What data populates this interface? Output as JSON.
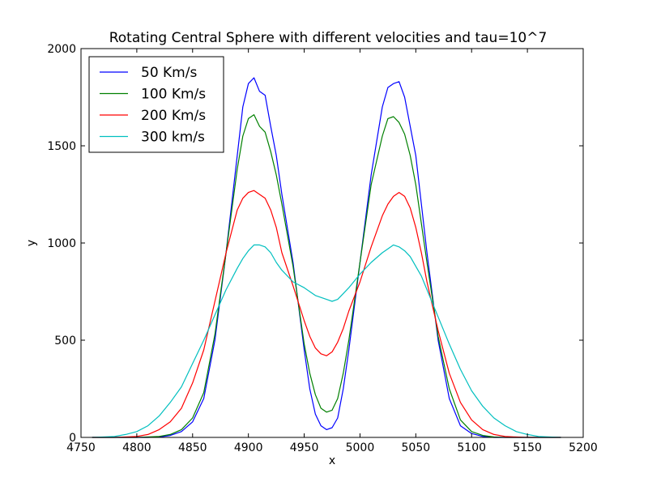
{
  "chart_data": {
    "type": "line",
    "title": "Rotating Central Sphere with different velocities and tau=10^7",
    "xlabel": "x",
    "ylabel": "y",
    "xlim": [
      4750,
      5200
    ],
    "ylim": [
      0,
      2000
    ],
    "xticks": [
      4750,
      4800,
      4850,
      4900,
      4950,
      5000,
      5050,
      5100,
      5150,
      5200
    ],
    "yticks": [
      0,
      500,
      1000,
      1500,
      2000
    ],
    "legend_position": "upper-left",
    "grid": false,
    "x": [
      4760,
      4770,
      4780,
      4790,
      4800,
      4810,
      4820,
      4830,
      4840,
      4850,
      4860,
      4870,
      4880,
      4890,
      4895,
      4900,
      4905,
      4910,
      4915,
      4920,
      4925,
      4930,
      4940,
      4950,
      4955,
      4960,
      4965,
      4970,
      4975,
      4980,
      4985,
      4990,
      5000,
      5010,
      5020,
      5025,
      5030,
      5035,
      5040,
      5045,
      5050,
      5055,
      5060,
      5070,
      5080,
      5090,
      5100,
      5110,
      5120,
      5130,
      5140,
      5150,
      5160,
      5170,
      5180
    ],
    "series": [
      {
        "name": "50 Km/s",
        "color": "#0000ff",
        "values": [
          0,
          0,
          0,
          0,
          0,
          0,
          2,
          10,
          30,
          80,
          200,
          500,
          950,
          1450,
          1700,
          1820,
          1850,
          1780,
          1760,
          1600,
          1450,
          1250,
          900,
          450,
          250,
          120,
          60,
          40,
          50,
          100,
          250,
          450,
          900,
          1350,
          1700,
          1800,
          1820,
          1830,
          1750,
          1600,
          1450,
          1200,
          950,
          500,
          200,
          60,
          20,
          5,
          0,
          0,
          0,
          0,
          0,
          0,
          0
        ]
      },
      {
        "name": "100 Km/s",
        "color": "#008000",
        "values": [
          0,
          0,
          0,
          0,
          0,
          2,
          5,
          15,
          40,
          100,
          230,
          530,
          950,
          1380,
          1550,
          1640,
          1660,
          1600,
          1570,
          1470,
          1350,
          1200,
          880,
          480,
          330,
          220,
          150,
          130,
          140,
          200,
          330,
          500,
          900,
          1300,
          1550,
          1640,
          1650,
          1620,
          1560,
          1450,
          1300,
          1100,
          900,
          520,
          250,
          90,
          30,
          10,
          2,
          0,
          0,
          0,
          0,
          0,
          0
        ]
      },
      {
        "name": "200 Km/s",
        "color": "#ff0000",
        "values": [
          0,
          0,
          0,
          2,
          5,
          15,
          40,
          80,
          150,
          280,
          450,
          700,
          950,
          1170,
          1230,
          1260,
          1270,
          1250,
          1230,
          1170,
          1080,
          950,
          780,
          600,
          520,
          460,
          430,
          420,
          440,
          490,
          560,
          650,
          800,
          980,
          1140,
          1200,
          1240,
          1260,
          1240,
          1180,
          1080,
          950,
          800,
          550,
          330,
          180,
          90,
          40,
          15,
          5,
          2,
          0,
          0,
          0,
          0
        ]
      },
      {
        "name": "300 km/s",
        "color": "#00bfbf",
        "values": [
          0,
          2,
          5,
          15,
          30,
          60,
          110,
          180,
          260,
          380,
          500,
          630,
          760,
          870,
          920,
          960,
          990,
          990,
          980,
          950,
          900,
          860,
          800,
          770,
          750,
          730,
          720,
          710,
          700,
          710,
          740,
          770,
          840,
          900,
          950,
          970,
          990,
          980,
          960,
          930,
          880,
          830,
          760,
          620,
          480,
          350,
          240,
          160,
          100,
          60,
          30,
          15,
          5,
          2,
          0
        ]
      }
    ]
  }
}
